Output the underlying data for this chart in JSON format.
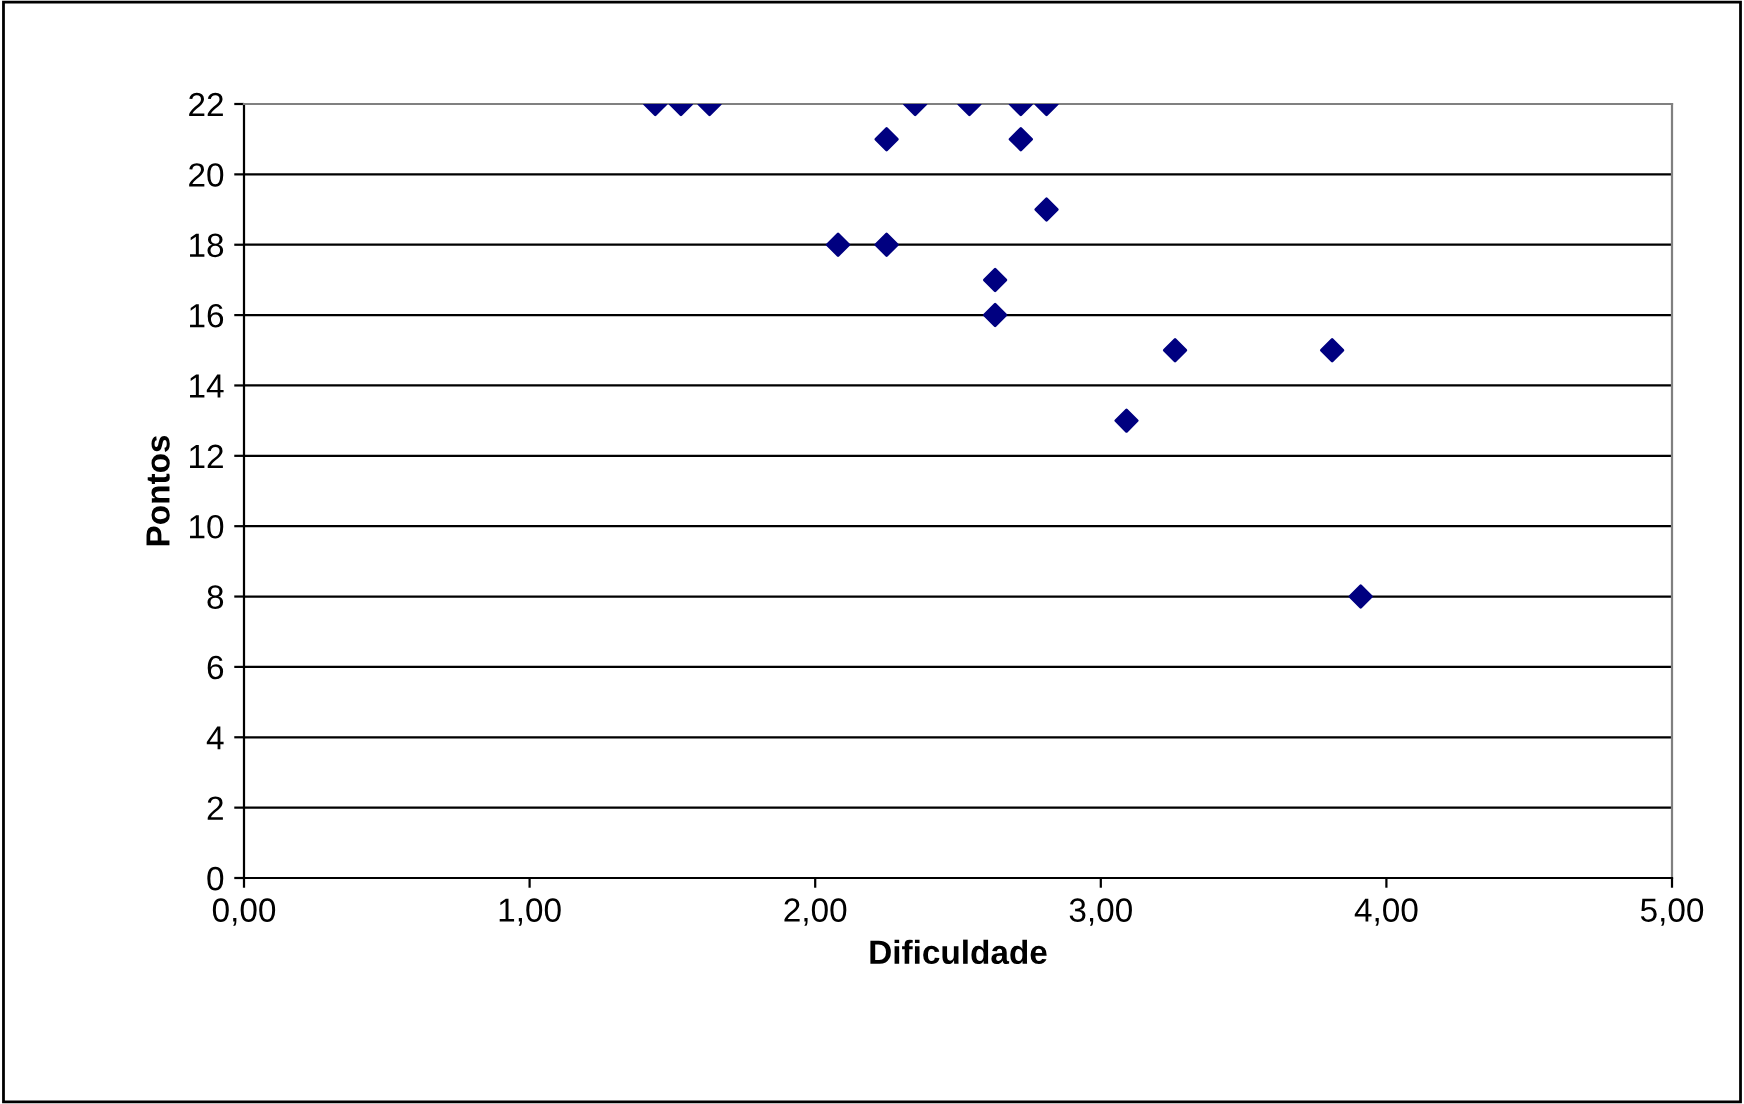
{
  "chart_data": {
    "type": "scatter",
    "xlabel": "Dificuldade",
    "ylabel": "Pontos",
    "x": [
      1.44,
      1.53,
      1.63,
      2.35,
      2.54,
      2.72,
      2.81,
      2.25,
      2.72,
      2.81,
      2.08,
      2.25,
      2.63,
      2.63,
      3.26,
      3.81,
      3.09,
      3.91
    ],
    "values": [
      22,
      22,
      22,
      22,
      22,
      22,
      22,
      21,
      21,
      19,
      18,
      18,
      17,
      16,
      15,
      15,
      13,
      8
    ],
    "color": "#000080",
    "marker": "diamond",
    "grid": "y",
    "xlim": [
      0,
      5
    ],
    "xticks": [
      {
        "value": 0,
        "label": "0,00"
      },
      {
        "value": 1,
        "label": "1,00"
      },
      {
        "value": 2,
        "label": "2,00"
      },
      {
        "value": 3,
        "label": "3,00"
      },
      {
        "value": 4,
        "label": "4,00"
      },
      {
        "value": 5,
        "label": "5,00"
      }
    ],
    "ylim": [
      0,
      22
    ],
    "yticks": [
      0,
      2,
      4,
      6,
      8,
      10,
      12,
      14,
      16,
      18,
      20,
      22
    ]
  }
}
